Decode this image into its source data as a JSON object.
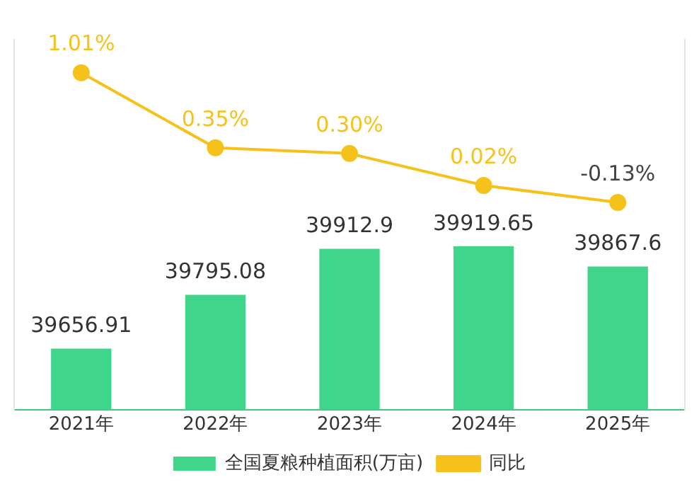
{
  "chart_data": {
    "type": "bar",
    "categories": [
      "2021年",
      "2022年",
      "2023年",
      "2024年",
      "2025年"
    ],
    "series": [
      {
        "name": "全国夏粮种植面积(万亩)",
        "color": "#3fd68b",
        "values": [
          39656.91,
          39795.08,
          39912.9,
          39919.65,
          39867.6
        ],
        "value_labels": [
          "39656.91",
          "39795.08",
          "39912.9",
          "39919.65",
          "39867.6"
        ]
      },
      {
        "name": "同比",
        "type": "line",
        "axis": "y2",
        "color": "#f5c21b",
        "values": [
          1.01,
          0.35,
          0.3,
          0.02,
          -0.13
        ],
        "value_labels": [
          "1.01%",
          "0.35%",
          "0.30%",
          "0.02%",
          "-0.13%"
        ]
      }
    ],
    "ylim": [
      39500,
      40450
    ],
    "y2lim": [
      -1.95,
      1.3
    ],
    "tick_labels": "x",
    "grid": false,
    "legend": "bottom",
    "marker": "circle",
    "line_style": "solid"
  }
}
